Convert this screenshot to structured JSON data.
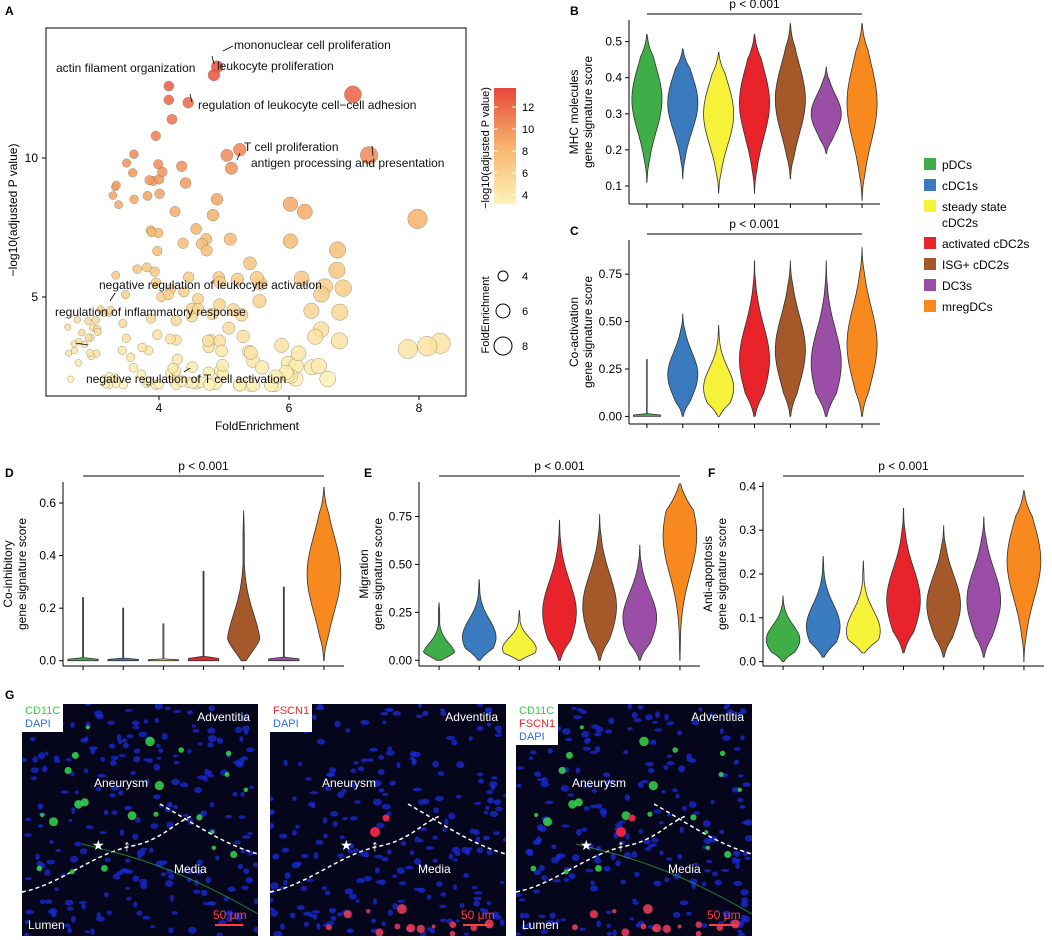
{
  "panels": {
    "a": "A",
    "b": "B",
    "c": "C",
    "d": "D",
    "e": "E",
    "f": "F",
    "g": "G"
  },
  "colors": {
    "pDCs": "#3fae49",
    "cDC1s": "#3a7bbf",
    "steady": "#f6f23a",
    "activated": "#e8242a",
    "isg": "#a5582a",
    "dc3": "#9b4ea5",
    "mreg": "#f7891f"
  },
  "scatter": {
    "xlabel": "FoldEnrichment",
    "ylabel": "−log10(adjusted P value)",
    "xticks": [
      "4",
      "6",
      "8"
    ],
    "yticks": [
      "5",
      "10"
    ],
    "colorbar_title": "−log10(adjusted P value)",
    "colorbar_ticks": [
      "4",
      "6",
      "8",
      "10",
      "12"
    ],
    "size_title": "FoldEnrichment",
    "size_ticks": [
      "4",
      "6",
      "8"
    ],
    "annotations": [
      "mononuclear cell proliferation",
      "actin filament organization",
      "leukocyte proliferation",
      "regulation of leukocyte cell−cell adhesion",
      "T cell proliferation",
      "antigen processing and presentation",
      "negative regulation of leukocyte activation",
      "regulation of inflammatory response",
      "negative regulation of T cell activation"
    ]
  },
  "chart_data": [
    {
      "type": "scatter",
      "xlabel": "FoldEnrichment",
      "ylabel": "−log10(adjusted P value)",
      "xlim": [
        2.3,
        8.8
      ],
      "ylim": [
        1.7,
        15
      ],
      "labeled_points": [
        {
          "term": "mononuclear cell proliferation",
          "x": 4.95,
          "y": 13.6
        },
        {
          "term": "actin filament organization",
          "x": 4.2,
          "y": 12.9
        },
        {
          "term": "leukocyte proliferation",
          "x": 4.9,
          "y": 13.3
        },
        {
          "term": "regulation of leukocyte cell−cell adhesion",
          "x": 4.5,
          "y": 12.3
        },
        {
          "term": "T cell proliferation",
          "x": 5.1,
          "y": 10.4
        },
        {
          "term": "antigen processing and presentation",
          "x": 7.3,
          "y": 10.4
        },
        {
          "term": "negative regulation of leukocyte activation",
          "x": 3.3,
          "y": 4.8
        },
        {
          "term": "regulation of inflammatory response",
          "x": 3.2,
          "y": 4.7
        },
        {
          "term": "negative regulation of T cell activation",
          "x": 2.8,
          "y": 2.9
        }
      ]
    },
    {
      "type": "violin",
      "title": "p < 0.001",
      "ylabel": "MHC molecules\ngene signature score",
      "yticks": [
        "0.1",
        "0.2",
        "0.3",
        "0.4",
        "0.5"
      ],
      "ylim": [
        0.05,
        0.56
      ],
      "groups": [
        "pDCs",
        "cDC1s",
        "steady state cDC2s",
        "activated cDC2s",
        "ISG+ cDC2s",
        "DC3s",
        "mregDCs"
      ],
      "min": [
        0.11,
        0.12,
        0.08,
        0.08,
        0.12,
        0.19,
        0.06
      ],
      "max": [
        0.52,
        0.48,
        0.47,
        0.52,
        0.55,
        0.43,
        0.55
      ],
      "median": [
        0.34,
        0.33,
        0.3,
        0.33,
        0.34,
        0.3,
        0.33
      ]
    },
    {
      "type": "violin",
      "title": "p < 0.001",
      "ylabel": "Co-activation\ngene signature score",
      "yticks": [
        "0.00",
        "0.25",
        "0.50",
        "0.75"
      ],
      "ylim": [
        -0.04,
        0.93
      ],
      "groups": [
        "pDCs",
        "cDC1s",
        "steady state cDC2s",
        "activated cDC2s",
        "ISG+ cDC2s",
        "DC3s",
        "mregDCs"
      ],
      "min": [
        0,
        0,
        0,
        0,
        0,
        0,
        0
      ],
      "max": [
        0.3,
        0.54,
        0.48,
        0.82,
        0.82,
        0.82,
        0.89
      ],
      "median": [
        0,
        0.22,
        0.15,
        0.3,
        0.35,
        0.28,
        0.38
      ]
    },
    {
      "type": "violin",
      "title": "p < 0.001",
      "ylabel": "Co-inhibitory\ngene signature score",
      "yticks": [
        "0.0",
        "0.2",
        "0.4",
        "0.6"
      ],
      "ylim": [
        -0.02,
        0.68
      ],
      "groups": [
        "pDCs",
        "cDC1s",
        "steady state cDC2s",
        "activated cDC2s",
        "ISG+ cDC2s",
        "DC3s",
        "mregDCs"
      ],
      "min": [
        0,
        0,
        0,
        0,
        0,
        0,
        0
      ],
      "max": [
        0.24,
        0.2,
        0.14,
        0.34,
        0.57,
        0.28,
        0.66
      ],
      "median": [
        0.01,
        0.01,
        0.01,
        0.01,
        0.05,
        0.01,
        0.33
      ]
    },
    {
      "type": "violin",
      "title": "p < 0.001",
      "ylabel": "Migration\ngene signature score",
      "yticks": [
        "0.00",
        "0.25",
        "0.50",
        "0.75"
      ],
      "ylim": [
        -0.03,
        0.93
      ],
      "groups": [
        "pDCs",
        "cDC1s",
        "steady state cDC2s",
        "activated cDC2s",
        "ISG+ cDC2s",
        "DC3s",
        "mregDCs"
      ],
      "min": [
        0,
        0,
        0,
        0,
        0,
        0,
        0
      ],
      "max": [
        0.3,
        0.42,
        0.26,
        0.73,
        0.76,
        0.6,
        0.92
      ],
      "median": [
        0.02,
        0.12,
        0.06,
        0.25,
        0.28,
        0.22,
        0.65
      ]
    },
    {
      "type": "violin",
      "title": "p < 0.001",
      "ylabel": "Anti-apoptosis\ngene signature score",
      "yticks": [
        "0.0",
        "0.1",
        "0.2",
        "0.3",
        "0.4"
      ],
      "ylim": [
        -0.01,
        0.41
      ],
      "groups": [
        "pDCs",
        "cDC1s",
        "steady state cDC2s",
        "activated cDC2s",
        "ISG+ cDC2s",
        "DC3s",
        "mregDCs"
      ],
      "min": [
        0,
        0.01,
        0.02,
        0.02,
        0.01,
        0.01,
        0
      ],
      "max": [
        0.15,
        0.24,
        0.23,
        0.35,
        0.31,
        0.33,
        0.39
      ],
      "median": [
        0.05,
        0.08,
        0.07,
        0.14,
        0.13,
        0.14,
        0.23
      ]
    }
  ],
  "legend": [
    {
      "key": "pDCs",
      "label": "pDCs"
    },
    {
      "key": "cDC1s",
      "label": "cDC1s"
    },
    {
      "key": "steady",
      "label": "steady state"
    },
    {
      "key": "steady2",
      "label": "cDC2s"
    },
    {
      "key": "activated",
      "label": "activated cDC2s"
    },
    {
      "key": "isg",
      "label": "ISG+ cDC2s"
    },
    {
      "key": "dc3",
      "label": "DC3s"
    },
    {
      "key": "mreg",
      "label": "mregDCs"
    }
  ],
  "micro": {
    "cd11c": "CD11C",
    "dapi": "DAPI",
    "fscn1": "FSCN1",
    "adventitia": "Adventitia",
    "aneurysm": "Aneurysm",
    "media": "Media",
    "lumen": "Lumen",
    "scale": "50 μm"
  }
}
